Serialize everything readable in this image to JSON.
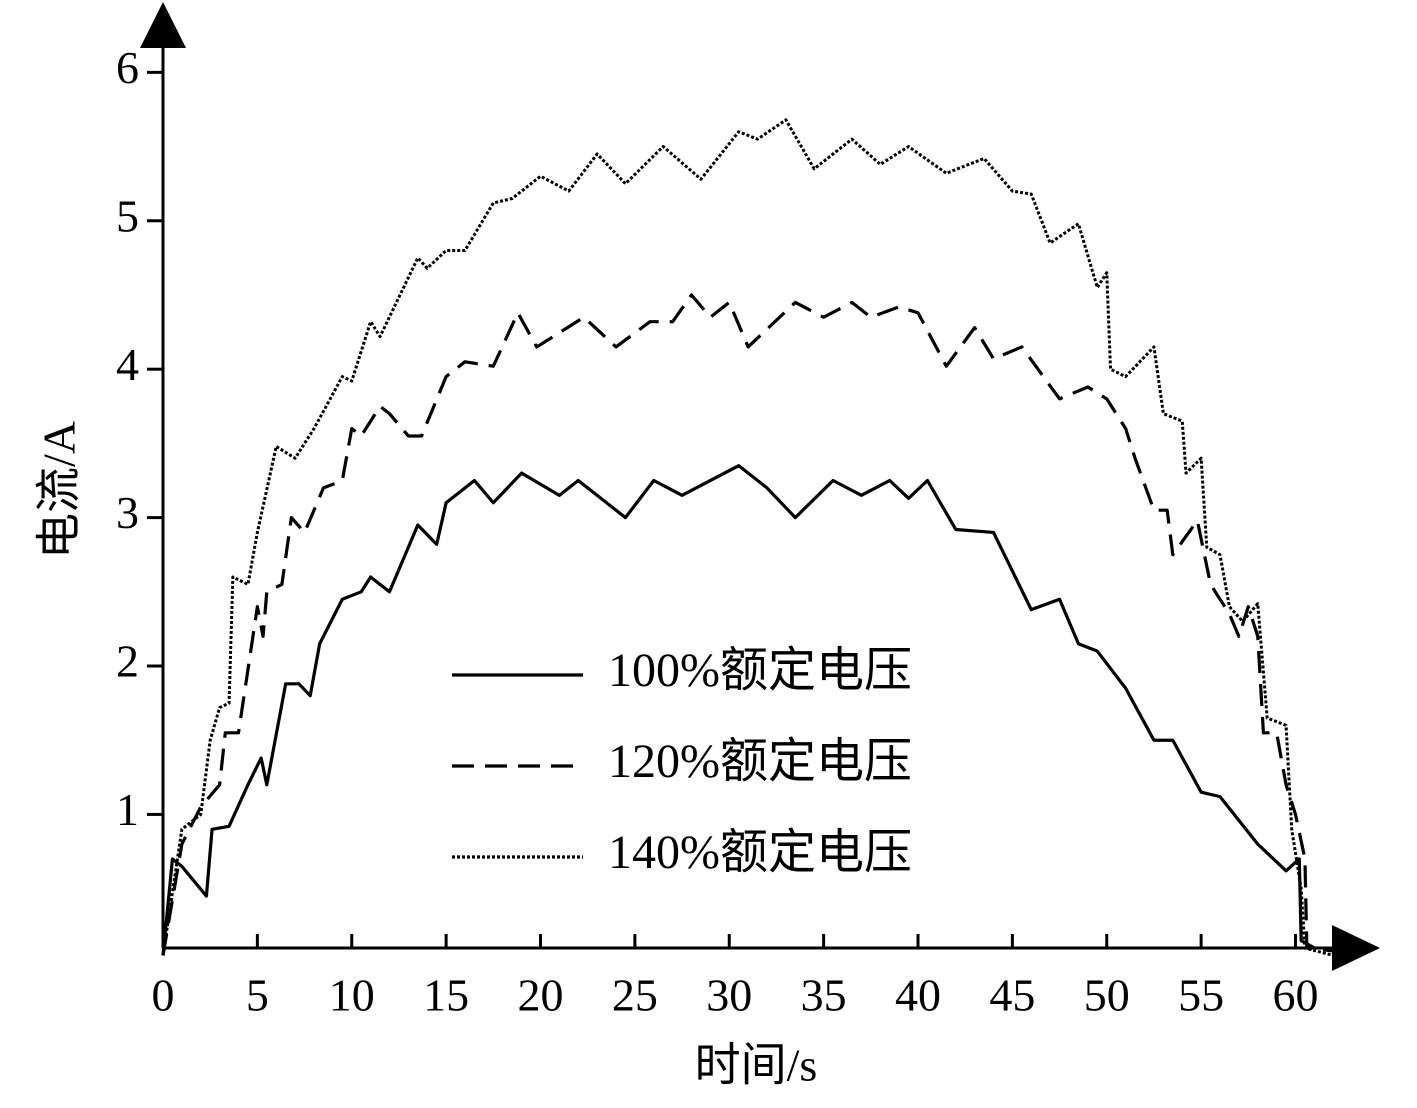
{
  "chart_data": {
    "type": "line",
    "xlabel": "时间/s",
    "ylabel": "电流/A",
    "xlim": [
      0,
      64
    ],
    "ylim": [
      0.1,
      6.4
    ],
    "xticks": [
      0,
      5,
      10,
      15,
      20,
      25,
      30,
      35,
      40,
      45,
      50,
      55,
      60
    ],
    "yticks": [
      1,
      2,
      3,
      4,
      5,
      6
    ],
    "grid": false,
    "series": [
      {
        "name": "100%额定电压",
        "color": "#000000",
        "dash": "solid",
        "x": [
          0,
          0.5,
          1,
          2.3,
          2.6,
          3.5,
          4.5,
          5.2,
          5.5,
          6.5,
          7.2,
          7.8,
          8.3,
          9.5,
          10.5,
          11,
          12,
          13.5,
          14.5,
          15,
          16.5,
          17.5,
          19,
          21,
          22,
          24.5,
          26,
          27.5,
          30.5,
          32,
          33.5,
          35.5,
          37,
          38.5,
          39.5,
          40.5,
          42,
          44,
          46,
          47.5,
          48.5,
          49.5,
          51,
          52.5,
          53.5,
          55,
          56,
          58,
          59.5,
          60.2,
          60.3,
          61
        ],
        "values": [
          0.05,
          0.7,
          0.65,
          0.45,
          0.9,
          0.92,
          1.2,
          1.38,
          1.2,
          1.88,
          1.88,
          1.8,
          2.15,
          2.45,
          2.5,
          2.6,
          2.5,
          2.95,
          2.82,
          3.1,
          3.25,
          3.1,
          3.3,
          3.15,
          3.25,
          3.0,
          3.25,
          3.15,
          3.35,
          3.2,
          3.0,
          3.25,
          3.15,
          3.25,
          3.13,
          3.25,
          2.92,
          2.9,
          2.38,
          2.45,
          2.15,
          2.1,
          1.85,
          1.5,
          1.5,
          1.15,
          1.12,
          0.8,
          0.62,
          0.7,
          0.15,
          0.1
        ]
      },
      {
        "name": "120%额定电压",
        "color": "#000000",
        "dash": "dashed",
        "x": [
          0,
          1,
          2,
          3,
          3.3,
          4,
          5,
          5.3,
          5.5,
          6.3,
          6.8,
          7.5,
          8.5,
          9.5,
          10,
          10.5,
          11.5,
          12,
          13,
          13.7,
          15,
          16,
          17.5,
          18.8,
          19.8,
          22.3,
          24,
          25.8,
          27,
          28,
          29,
          30,
          31,
          33.5,
          35,
          36.5,
          37.5,
          39,
          40,
          41.5,
          43,
          44,
          45.5,
          47.5,
          49,
          50,
          51,
          51.5,
          52.5,
          53.2,
          53.5,
          54.8,
          55.5,
          56.5,
          57,
          57.5,
          58,
          58.3,
          59,
          59.5,
          60,
          60.5,
          60.6,
          62
        ],
        "values": [
          0.05,
          0.8,
          1.05,
          1.2,
          1.55,
          1.55,
          2.4,
          2.2,
          2.5,
          2.55,
          3.0,
          2.9,
          3.2,
          3.25,
          3.6,
          3.55,
          3.75,
          3.7,
          3.55,
          3.55,
          3.95,
          4.05,
          4.02,
          4.38,
          4.15,
          4.35,
          4.15,
          4.32,
          4.32,
          4.5,
          4.35,
          4.45,
          4.15,
          4.45,
          4.35,
          4.45,
          4.35,
          4.42,
          4.38,
          4.02,
          4.28,
          4.07,
          4.15,
          3.8,
          3.88,
          3.8,
          3.6,
          3.4,
          3.05,
          3.05,
          2.75,
          2.98,
          2.55,
          2.35,
          2.2,
          2.4,
          2.2,
          1.55,
          1.55,
          1.2,
          1.0,
          0.7,
          0.1,
          0.08
        ]
      },
      {
        "name": "140%额定电压",
        "color": "#000000",
        "dash": "dotted",
        "x": [
          0,
          1,
          2,
          2.5,
          3,
          3.5,
          3.7,
          4.5,
          5,
          6,
          7,
          8,
          9.5,
          10,
          11,
          11.5,
          13.5,
          14,
          15,
          16,
          17.5,
          18.5,
          20,
          21.5,
          23,
          24.5,
          26.5,
          28.5,
          30.5,
          31.5,
          33,
          34.5,
          36.5,
          38,
          39.5,
          41.5,
          43.5,
          45,
          46,
          47,
          48.5,
          49.5,
          50,
          50.2,
          51,
          52.5,
          53,
          54,
          54.2,
          55,
          55.3,
          56,
          56.5,
          57.2,
          58,
          58.5,
          59.5,
          59.8,
          60.3,
          60.5,
          62
        ],
        "values": [
          0.05,
          0.9,
          1.0,
          1.5,
          1.72,
          1.75,
          2.6,
          2.55,
          2.9,
          3.48,
          3.4,
          3.6,
          3.95,
          3.92,
          4.32,
          4.22,
          4.75,
          4.68,
          4.8,
          4.8,
          5.12,
          5.15,
          5.3,
          5.2,
          5.45,
          5.25,
          5.5,
          5.28,
          5.6,
          5.55,
          5.68,
          5.35,
          5.55,
          5.38,
          5.5,
          5.32,
          5.42,
          5.2,
          5.18,
          4.85,
          4.98,
          4.55,
          4.65,
          4.0,
          3.95,
          4.15,
          3.7,
          3.65,
          3.3,
          3.4,
          2.8,
          2.75,
          2.4,
          2.3,
          2.42,
          1.65,
          1.6,
          0.9,
          0.5,
          0.1,
          0.05
        ]
      }
    ]
  }
}
